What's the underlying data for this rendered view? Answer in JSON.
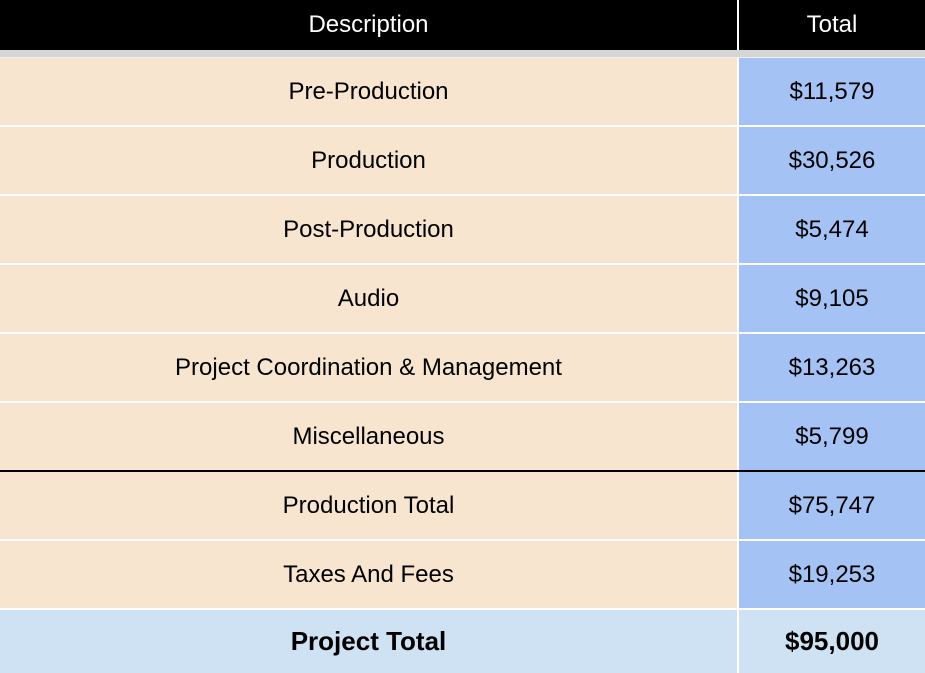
{
  "header": {
    "description": "Description",
    "total": "Total"
  },
  "rows": [
    {
      "description": "Pre-Production",
      "total": "$11,579"
    },
    {
      "description": "Production",
      "total": "$30,526"
    },
    {
      "description": "Post-Production",
      "total": "$5,474"
    },
    {
      "description": "Audio",
      "total": "$9,105"
    },
    {
      "description": "Project Coordination & Management",
      "total": "$13,263"
    },
    {
      "description": "Miscellaneous",
      "total": "$5,799"
    },
    {
      "description": "Production Total",
      "total": "$75,747"
    },
    {
      "description": "Taxes And Fees",
      "total": "$19,253"
    }
  ],
  "project_total": {
    "label": "Project Total",
    "value": "$95,000"
  },
  "colors": {
    "header_bg": "#000000",
    "description_bg": "#f8e5cf",
    "total_bg": "#a4c2f4",
    "project_total_bg": "#cfe2f3"
  }
}
